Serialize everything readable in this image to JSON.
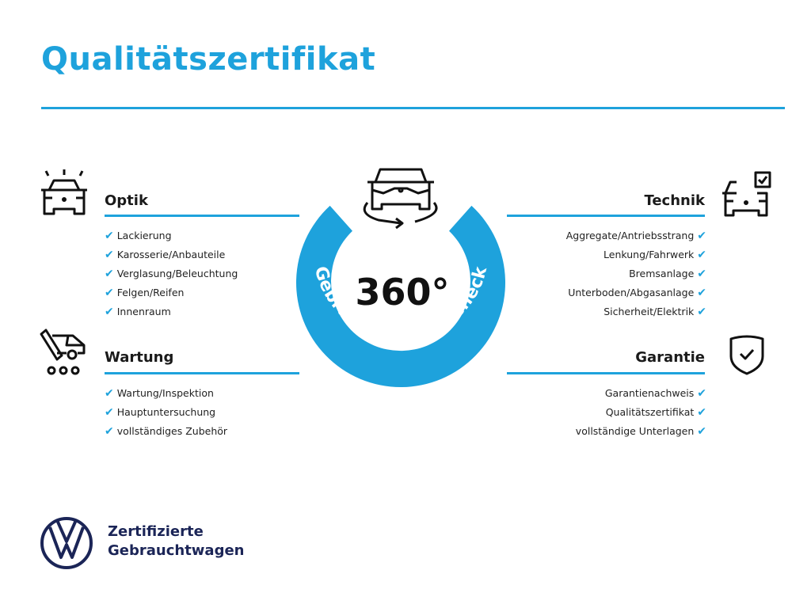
{
  "title": "Qualitätszertifikat",
  "accent_color": "#1ea2dc",
  "brand_color": "#1b2557",
  "sections": {
    "optik": {
      "heading": "Optik",
      "icon": "car-lights-icon",
      "items": [
        "Lackierung",
        "Karosserie/Anbauteile",
        "Verglasung/Beleuchtung",
        "Felgen/Reifen",
        "Innenraum"
      ]
    },
    "wartung": {
      "heading": "Wartung",
      "icon": "maintenance-tools-icon",
      "items": [
        "Wartung/Inspektion",
        "Hauptuntersuchung",
        "vollständiges Zubehör"
      ]
    },
    "technik": {
      "heading": "Technik",
      "icon": "car-checklist-icon",
      "items": [
        "Aggregate/Antriebsstrang",
        "Lenkung/Fahrwerk",
        "Bremsanlage",
        "Unterboden/Abgasanlage",
        "Sicherheit/Elektrik"
      ]
    },
    "garantie": {
      "heading": "Garantie",
      "icon": "shield-check-icon",
      "items": [
        "Garantienachweis",
        "Qualitätszertifikat",
        "vollständige Unterlagen"
      ]
    }
  },
  "badge": {
    "value": "360°",
    "ring_text": "Gebrauchtwagen-Check",
    "icon": "car-rotate-icon"
  },
  "logo": {
    "icon": "vw-logo-icon",
    "line1": "Zertifizierte",
    "line2": "Gebrauchtwagen"
  },
  "check_icon": "checkmark-icon"
}
